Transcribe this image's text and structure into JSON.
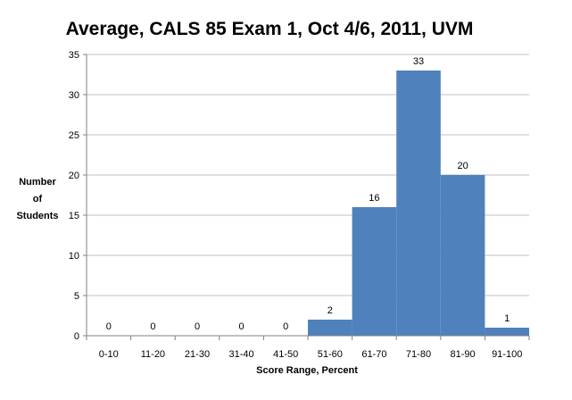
{
  "chart_data": {
    "type": "bar",
    "title": "Average, CALS 85 Exam 1, Oct 4/6, 2011, UVM",
    "xlabel": "Score Range, Percent",
    "ylabel_lines": [
      "Number",
      "of",
      "Students"
    ],
    "categories": [
      "0-10",
      "11-20",
      "21-30",
      "31-40",
      "41-50",
      "51-60",
      "61-70",
      "71-80",
      "81-90",
      "91-100"
    ],
    "values": [
      0,
      0,
      0,
      0,
      0,
      2,
      16,
      33,
      20,
      1
    ],
    "ylim": [
      0,
      35
    ],
    "yticks": [
      0,
      5,
      10,
      15,
      20,
      25,
      30,
      35
    ],
    "grid": true,
    "legend": "none",
    "bar_color": "#4f81bd"
  }
}
